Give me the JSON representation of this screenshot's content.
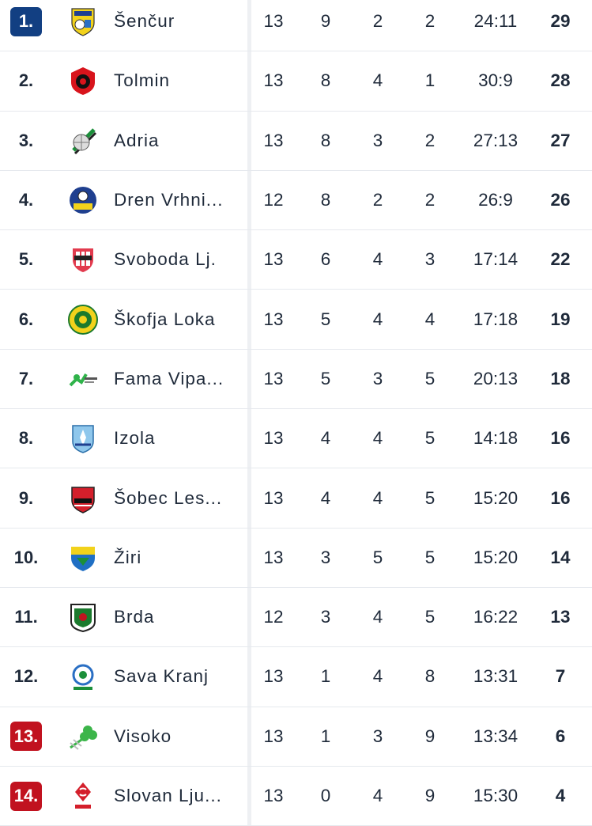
{
  "standings": [
    {
      "rank": "1.",
      "zone": "promo",
      "team": "Šenčur",
      "logo": "sencur-crest-icon",
      "played": "13",
      "won": "9",
      "drawn": "2",
      "lost": "2",
      "goals": "24:11",
      "points": "29"
    },
    {
      "rank": "2.",
      "zone": "",
      "team": "Tolmin",
      "logo": "tolmin-crest-icon",
      "played": "13",
      "won": "8",
      "drawn": "4",
      "lost": "1",
      "goals": "30:9",
      "points": "28"
    },
    {
      "rank": "3.",
      "zone": "",
      "team": "Adria",
      "logo": "adria-crest-icon",
      "played": "13",
      "won": "8",
      "drawn": "3",
      "lost": "2",
      "goals": "27:13",
      "points": "27"
    },
    {
      "rank": "4.",
      "zone": "",
      "team": "Dren Vrhni...",
      "logo": "dren-vrhnika-crest-icon",
      "played": "12",
      "won": "8",
      "drawn": "2",
      "lost": "2",
      "goals": "26:9",
      "points": "26"
    },
    {
      "rank": "5.",
      "zone": "",
      "team": "Svoboda Lj.",
      "logo": "svoboda-crest-icon",
      "played": "13",
      "won": "6",
      "drawn": "4",
      "lost": "3",
      "goals": "17:14",
      "points": "22"
    },
    {
      "rank": "6.",
      "zone": "",
      "team": "Škofja Loka",
      "logo": "skofja-loka-crest-icon",
      "played": "13",
      "won": "5",
      "drawn": "4",
      "lost": "4",
      "goals": "17:18",
      "points": "19"
    },
    {
      "rank": "7.",
      "zone": "",
      "team": "Fama Vipa...",
      "logo": "fama-vipava-crest-icon",
      "played": "13",
      "won": "5",
      "drawn": "3",
      "lost": "5",
      "goals": "20:13",
      "points": "18"
    },
    {
      "rank": "8.",
      "zone": "",
      "team": "Izola",
      "logo": "izola-crest-icon",
      "played": "13",
      "won": "4",
      "drawn": "4",
      "lost": "5",
      "goals": "14:18",
      "points": "16"
    },
    {
      "rank": "9.",
      "zone": "",
      "team": "Šobec Les...",
      "logo": "sobec-lesce-crest-icon",
      "played": "13",
      "won": "4",
      "drawn": "4",
      "lost": "5",
      "goals": "15:20",
      "points": "16"
    },
    {
      "rank": "10.",
      "zone": "",
      "team": "Žiri",
      "logo": "ziri-crest-icon",
      "played": "13",
      "won": "3",
      "drawn": "5",
      "lost": "5",
      "goals": "15:20",
      "points": "14"
    },
    {
      "rank": "11.",
      "zone": "",
      "team": "Brda",
      "logo": "brda-crest-icon",
      "played": "12",
      "won": "3",
      "drawn": "4",
      "lost": "5",
      "goals": "16:22",
      "points": "13"
    },
    {
      "rank": "12.",
      "zone": "",
      "team": "Sava Kranj",
      "logo": "sava-kranj-crest-icon",
      "played": "13",
      "won": "1",
      "drawn": "4",
      "lost": "8",
      "goals": "13:31",
      "points": "7"
    },
    {
      "rank": "13.",
      "zone": "releg",
      "team": "Visoko",
      "logo": "visoko-crest-icon",
      "played": "13",
      "won": "1",
      "drawn": "3",
      "lost": "9",
      "goals": "13:34",
      "points": "6"
    },
    {
      "rank": "14.",
      "zone": "releg",
      "team": "Slovan Lju...",
      "logo": "slovan-crest-icon",
      "played": "13",
      "won": "0",
      "drawn": "4",
      "lost": "9",
      "goals": "15:30",
      "points": "4"
    }
  ],
  "colors": {
    "promotion": "#123f82",
    "relegation": "#c1121f",
    "text": "#1f2a3a",
    "divider": "#e6e9ee"
  }
}
